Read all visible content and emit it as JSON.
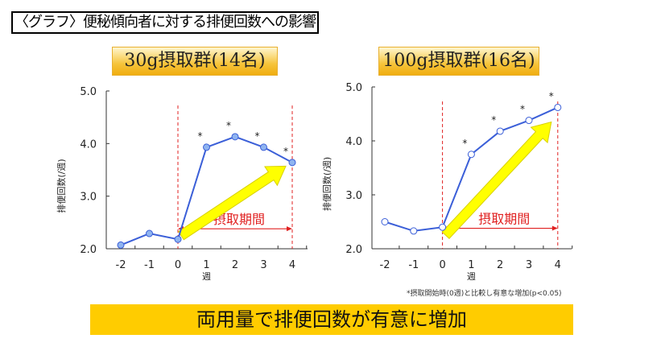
{
  "title": "〈グラフ〉便秘傾向者に対する排便回数への影響",
  "footnote": "*摂取開始時(0週)と比較し有意な増加(p<0.05)",
  "conclusion": "両用量で排便回数が有意に増加",
  "colors": {
    "line": "#3b5fd8",
    "marker": "#8fb4f0",
    "period": "#e02020",
    "arrow": "#ffff00",
    "banner": "#ffcc00"
  },
  "chart_data": [
    {
      "type": "line",
      "title": "30g摂取群(14名)",
      "xlabel": "週",
      "ylabel": "排便回数(/週)",
      "ylim": [
        2.0,
        5.0
      ],
      "yticks": [
        "2.0",
        "3.0",
        "4.0",
        "5.0"
      ],
      "x": [
        "-2",
        "-1",
        "0",
        "1",
        "2",
        "3",
        "4"
      ],
      "values": [
        2.07,
        2.29,
        2.18,
        3.93,
        4.13,
        3.93,
        3.64
      ],
      "significant": [
        false,
        false,
        false,
        true,
        true,
        true,
        true
      ],
      "period_label": "摂取期間",
      "marker": "filled"
    },
    {
      "type": "line",
      "title": "100g摂取群(16名)",
      "xlabel": "週",
      "ylabel": "排便回数(/週)",
      "ylim": [
        2.0,
        5.0
      ],
      "yticks": [
        "2.0",
        "3.0",
        "4.0",
        "5.0"
      ],
      "x": [
        "-2",
        "-1",
        "0",
        "1",
        "2",
        "3",
        "4"
      ],
      "values": [
        2.5,
        2.33,
        2.4,
        3.75,
        4.18,
        4.38,
        4.62
      ],
      "significant": [
        false,
        false,
        false,
        true,
        true,
        true,
        true
      ],
      "period_label": "摂取期間",
      "marker": "open"
    }
  ]
}
